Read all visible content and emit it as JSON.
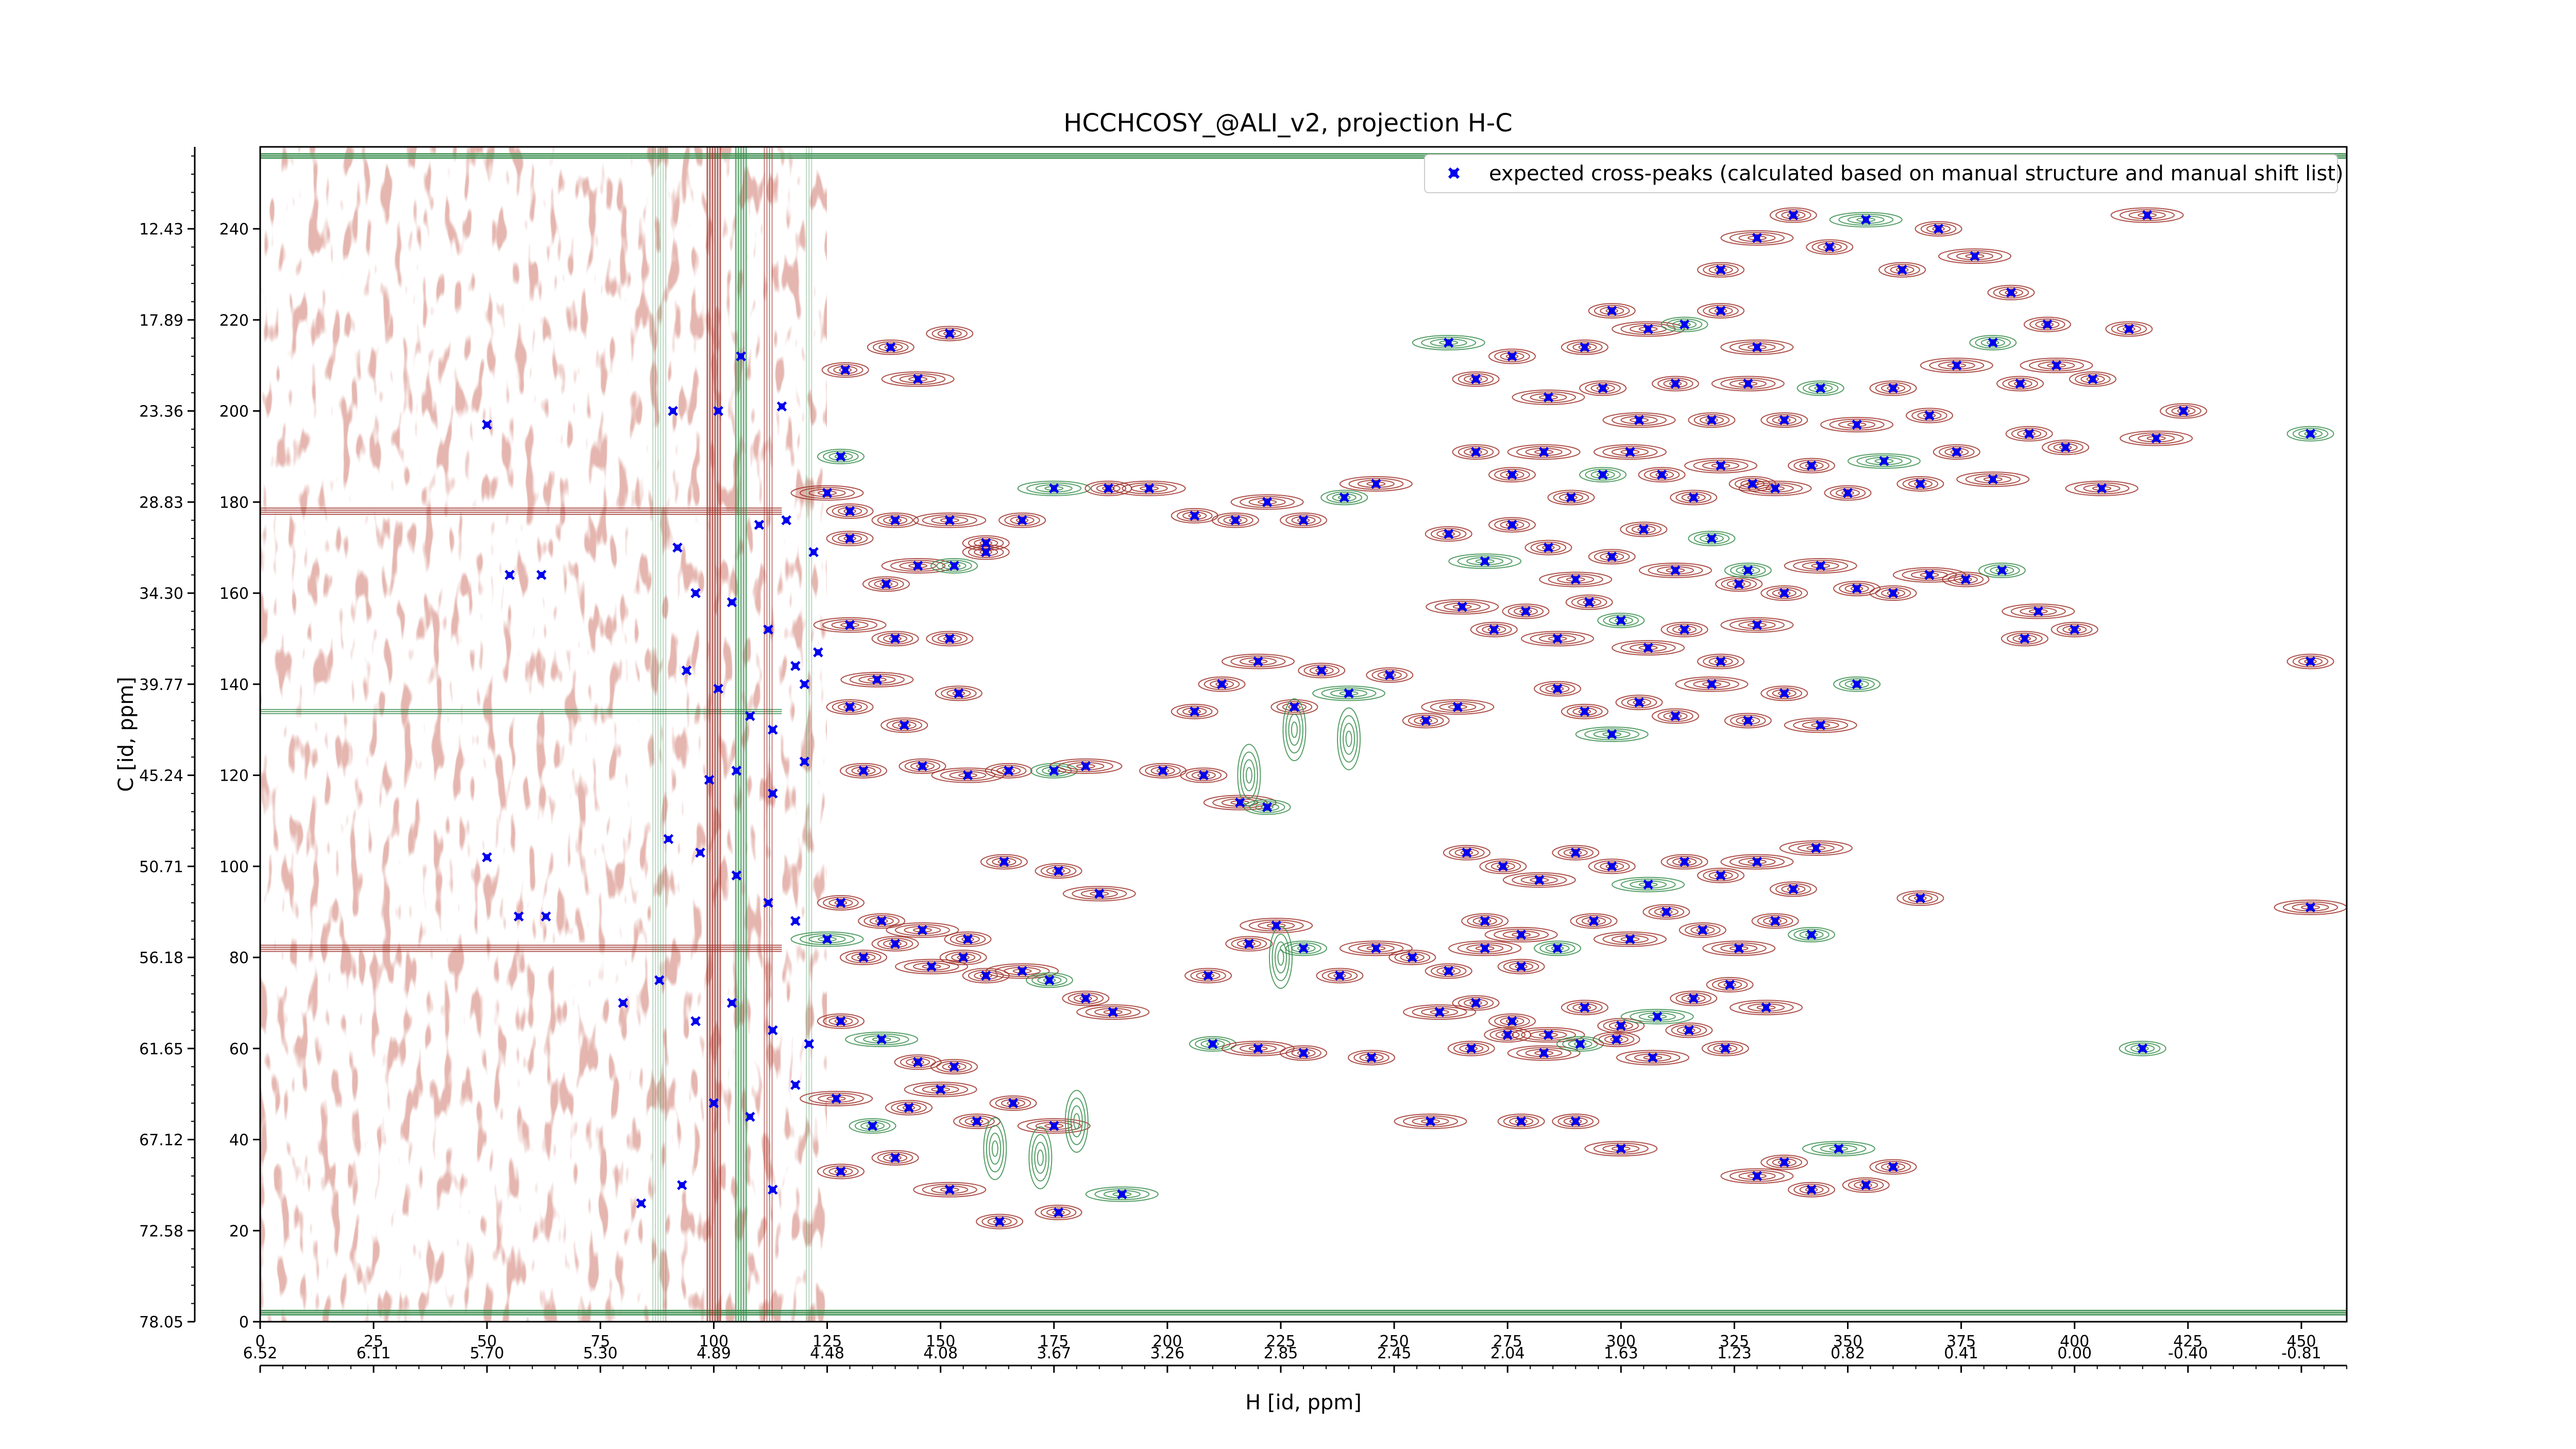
{
  "chart_data": {
    "type": "scatter",
    "title": "HCCHCOSY_@ALI_v2, projection H-C",
    "xlabel": "H [id, ppm]",
    "ylabel": "C [id, ppm]",
    "xlim": [
      0,
      460
    ],
    "ylim": [
      0,
      258
    ],
    "x_ticks": [
      0,
      25,
      50,
      75,
      100,
      125,
      150,
      175,
      200,
      225,
      250,
      275,
      300,
      325,
      350,
      375,
      400,
      425,
      450
    ],
    "x_ppm_ticks": [
      "6.52",
      "6.11",
      "5.70",
      "5.30",
      "4.89",
      "4.48",
      "4.08",
      "3.67",
      "3.26",
      "2.85",
      "2.45",
      "2.04",
      "1.63",
      "1.23",
      "0.82",
      "0.41",
      "0.00",
      "-0.40",
      "-0.81"
    ],
    "y_ticks": [
      0,
      20,
      40,
      60,
      80,
      100,
      120,
      140,
      160,
      180,
      200,
      220,
      240
    ],
    "y_ppm_ticks": [
      "78.05",
      "72.58",
      "67.12",
      "61.65",
      "56.18",
      "50.71",
      "45.24",
      "39.77",
      "34.30",
      "28.83",
      "23.36",
      "17.89",
      "12.43"
    ],
    "legend": {
      "label": "expected cross-peaks (calculated based on manual structure and manual shift list)",
      "placement": "top-right"
    },
    "colors": {
      "marker": "#0000ee",
      "positive_contour": "#a0322a",
      "negative_contour": "#3a8f4e"
    },
    "series": [
      {
        "name": "expected cross-peaks (calculated based on manual structure and manual shift list)",
        "points": [
          [
            50,
            197
          ],
          [
            55,
            164
          ],
          [
            62,
            164
          ],
          [
            57,
            89
          ],
          [
            63,
            89
          ],
          [
            50,
            102
          ],
          [
            91,
            200
          ],
          [
            101,
            200
          ],
          [
            106,
            212
          ],
          [
            115,
            201
          ],
          [
            129,
            209
          ],
          [
            139,
            214
          ],
          [
            145,
            207
          ],
          [
            152,
            217
          ],
          [
            128,
            190
          ],
          [
            125,
            182
          ],
          [
            130,
            178
          ],
          [
            140,
            176
          ],
          [
            152,
            176
          ],
          [
            160,
            171
          ],
          [
            168,
            176
          ],
          [
            175,
            183
          ],
          [
            110,
            175
          ],
          [
            116,
            176
          ],
          [
            122,
            169
          ],
          [
            130,
            172
          ],
          [
            138,
            162
          ],
          [
            145,
            166
          ],
          [
            153,
            166
          ],
          [
            160,
            169
          ],
          [
            92,
            170
          ],
          [
            96,
            160
          ],
          [
            104,
            158
          ],
          [
            112,
            152
          ],
          [
            118,
            144
          ],
          [
            123,
            147
          ],
          [
            130,
            153
          ],
          [
            140,
            150
          ],
          [
            152,
            150
          ],
          [
            94,
            143
          ],
          [
            101,
            139
          ],
          [
            108,
            133
          ],
          [
            113,
            130
          ],
          [
            120,
            140
          ],
          [
            130,
            135
          ],
          [
            136,
            141
          ],
          [
            142,
            131
          ],
          [
            154,
            138
          ],
          [
            99,
            119
          ],
          [
            105,
            121
          ],
          [
            113,
            116
          ],
          [
            120,
            123
          ],
          [
            133,
            121
          ],
          [
            146,
            122
          ],
          [
            156,
            120
          ],
          [
            165,
            121
          ],
          [
            175,
            121
          ],
          [
            182,
            122
          ],
          [
            90,
            106
          ],
          [
            97,
            103
          ],
          [
            105,
            98
          ],
          [
            112,
            92
          ],
          [
            118,
            88
          ],
          [
            125,
            84
          ],
          [
            133,
            80
          ],
          [
            140,
            83
          ],
          [
            148,
            78
          ],
          [
            155,
            80
          ],
          [
            160,
            76
          ],
          [
            168,
            77
          ],
          [
            174,
            75
          ],
          [
            182,
            71
          ],
          [
            188,
            68
          ],
          [
            128,
            92
          ],
          [
            137,
            88
          ],
          [
            146,
            86
          ],
          [
            156,
            84
          ],
          [
            80,
            70
          ],
          [
            88,
            75
          ],
          [
            96,
            66
          ],
          [
            104,
            70
          ],
          [
            113,
            64
          ],
          [
            121,
            61
          ],
          [
            128,
            66
          ],
          [
            137,
            62
          ],
          [
            145,
            57
          ],
          [
            153,
            56
          ],
          [
            100,
            48
          ],
          [
            108,
            45
          ],
          [
            118,
            52
          ],
          [
            127,
            49
          ],
          [
            135,
            43
          ],
          [
            143,
            47
          ],
          [
            150,
            51
          ],
          [
            158,
            44
          ],
          [
            166,
            48
          ],
          [
            175,
            43
          ],
          [
            84,
            26
          ],
          [
            93,
            30
          ],
          [
            113,
            29
          ],
          [
            128,
            33
          ],
          [
            140,
            36
          ],
          [
            152,
            29
          ],
          [
            163,
            22
          ],
          [
            176,
            24
          ],
          [
            190,
            28
          ],
          [
            164,
            101
          ],
          [
            176,
            99
          ],
          [
            185,
            94
          ],
          [
            199,
            121
          ],
          [
            208,
            120
          ],
          [
            216,
            114
          ],
          [
            222,
            113
          ],
          [
            187,
            183
          ],
          [
            196,
            183
          ],
          [
            206,
            177
          ],
          [
            215,
            176
          ],
          [
            222,
            180
          ],
          [
            230,
            176
          ],
          [
            239,
            181
          ],
          [
            246,
            184
          ],
          [
            206,
            134
          ],
          [
            212,
            140
          ],
          [
            220,
            145
          ],
          [
            228,
            135
          ],
          [
            234,
            143
          ],
          [
            240,
            138
          ],
          [
            249,
            142
          ],
          [
            257,
            132
          ],
          [
            264,
            135
          ],
          [
            209,
            76
          ],
          [
            218,
            83
          ],
          [
            224,
            87
          ],
          [
            230,
            82
          ],
          [
            238,
            76
          ],
          [
            246,
            82
          ],
          [
            254,
            80
          ],
          [
            262,
            77
          ],
          [
            270,
            82
          ],
          [
            278,
            78
          ],
          [
            210,
            61
          ],
          [
            220,
            60
          ],
          [
            230,
            59
          ],
          [
            245,
            58
          ],
          [
            258,
            44
          ],
          [
            278,
            44
          ],
          [
            290,
            44
          ],
          [
            262,
            215
          ],
          [
            268,
            207
          ],
          [
            276,
            212
          ],
          [
            284,
            203
          ],
          [
            292,
            214
          ],
          [
            298,
            222
          ],
          [
            306,
            218
          ],
          [
            314,
            219
          ],
          [
            322,
            222
          ],
          [
            330,
            214
          ],
          [
            268,
            191
          ],
          [
            276,
            186
          ],
          [
            283,
            191
          ],
          [
            289,
            181
          ],
          [
            296,
            186
          ],
          [
            302,
            191
          ],
          [
            309,
            186
          ],
          [
            316,
            181
          ],
          [
            322,
            188
          ],
          [
            329,
            184
          ],
          [
            262,
            173
          ],
          [
            270,
            167
          ],
          [
            276,
            175
          ],
          [
            284,
            170
          ],
          [
            290,
            163
          ],
          [
            298,
            168
          ],
          [
            305,
            174
          ],
          [
            312,
            165
          ],
          [
            320,
            172
          ],
          [
            326,
            162
          ],
          [
            265,
            157
          ],
          [
            272,
            152
          ],
          [
            279,
            156
          ],
          [
            286,
            150
          ],
          [
            293,
            158
          ],
          [
            300,
            154
          ],
          [
            306,
            148
          ],
          [
            314,
            152
          ],
          [
            322,
            145
          ],
          [
            330,
            153
          ],
          [
            286,
            139
          ],
          [
            292,
            134
          ],
          [
            298,
            129
          ],
          [
            304,
            136
          ],
          [
            312,
            133
          ],
          [
            320,
            140
          ],
          [
            328,
            132
          ],
          [
            336,
            138
          ],
          [
            344,
            131
          ],
          [
            352,
            140
          ],
          [
            296,
            205
          ],
          [
            304,
            198
          ],
          [
            312,
            206
          ],
          [
            320,
            198
          ],
          [
            328,
            206
          ],
          [
            336,
            198
          ],
          [
            344,
            205
          ],
          [
            352,
            197
          ],
          [
            360,
            205
          ],
          [
            368,
            199
          ],
          [
            334,
            183
          ],
          [
            342,
            188
          ],
          [
            350,
            182
          ],
          [
            358,
            189
          ],
          [
            366,
            184
          ],
          [
            374,
            191
          ],
          [
            382,
            185
          ],
          [
            390,
            195
          ],
          [
            398,
            192
          ],
          [
            406,
            183
          ],
          [
            328,
            165
          ],
          [
            336,
            160
          ],
          [
            344,
            166
          ],
          [
            352,
            161
          ],
          [
            360,
            160
          ],
          [
            368,
            164
          ],
          [
            376,
            163
          ],
          [
            384,
            165
          ],
          [
            392,
            156
          ],
          [
            400,
            152
          ],
          [
            322,
            231
          ],
          [
            330,
            238
          ],
          [
            338,
            243
          ],
          [
            346,
            236
          ],
          [
            354,
            242
          ],
          [
            362,
            231
          ],
          [
            370,
            240
          ],
          [
            378,
            234
          ],
          [
            386,
            226
          ],
          [
            394,
            219
          ],
          [
            374,
            210
          ],
          [
            382,
            215
          ],
          [
            388,
            206
          ],
          [
            396,
            210
          ],
          [
            404,
            207
          ],
          [
            412,
            218
          ],
          [
            418,
            194
          ],
          [
            424,
            200
          ],
          [
            452,
            195
          ],
          [
            416,
            243
          ],
          [
            266,
            103
          ],
          [
            274,
            100
          ],
          [
            282,
            97
          ],
          [
            290,
            103
          ],
          [
            298,
            100
          ],
          [
            306,
            96
          ],
          [
            314,
            101
          ],
          [
            322,
            98
          ],
          [
            330,
            101
          ],
          [
            338,
            95
          ],
          [
            270,
            88
          ],
          [
            278,
            85
          ],
          [
            286,
            82
          ],
          [
            294,
            88
          ],
          [
            302,
            84
          ],
          [
            310,
            90
          ],
          [
            318,
            86
          ],
          [
            326,
            82
          ],
          [
            334,
            88
          ],
          [
            342,
            85
          ],
          [
            260,
            68
          ],
          [
            268,
            70
          ],
          [
            276,
            66
          ],
          [
            284,
            63
          ],
          [
            292,
            69
          ],
          [
            300,
            65
          ],
          [
            308,
            67
          ],
          [
            316,
            71
          ],
          [
            324,
            74
          ],
          [
            332,
            69
          ],
          [
            267,
            60
          ],
          [
            275,
            63
          ],
          [
            283,
            59
          ],
          [
            291,
            61
          ],
          [
            299,
            62
          ],
          [
            307,
            58
          ],
          [
            315,
            64
          ],
          [
            323,
            60
          ],
          [
            343,
            104
          ],
          [
            366,
            93
          ],
          [
            415,
            60
          ],
          [
            452,
            91
          ],
          [
            452,
            145
          ],
          [
            389,
            150
          ],
          [
            330,
            32
          ],
          [
            336,
            35
          ],
          [
            342,
            29
          ],
          [
            348,
            38
          ],
          [
            354,
            30
          ],
          [
            360,
            34
          ],
          [
            300,
            38
          ]
        ]
      }
    ]
  }
}
